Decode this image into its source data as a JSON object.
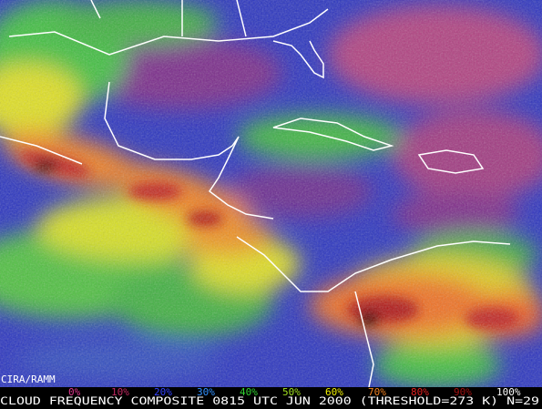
{
  "credit": "CIRA/RAMM",
  "legend": {
    "labels": [
      "0%",
      "10%",
      "20%",
      "30%",
      "40%",
      "50%",
      "60%",
      "70%",
      "80%",
      "90%",
      "100%"
    ]
  },
  "caption": "CLOUD FREQUENCY COMPOSITE 0815 UTC JUN 2000 (THRESHOLD=273 K) N=29"
}
